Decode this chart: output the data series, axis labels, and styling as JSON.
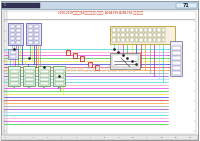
{
  "title": "2018-2019年雷克萨斯ES系列车型电路图-巡航控制  A25A-FXS A25B-FXS 混合动力系统",
  "bg_color": "#ffffff",
  "page_num": "71",
  "watermark": "www.AutoCD.net",
  "wire_cyan": "#00cccc",
  "wire_magenta": "#dd00dd",
  "wire_pink": "#ff88bb",
  "wire_green": "#00bb00",
  "wire_yellow": "#dddd00",
  "wire_blue": "#0000dd",
  "wire_red": "#dd0000",
  "wire_orange": "#ff8800",
  "wire_gray": "#888888",
  "wire_darkgray": "#555555",
  "wire_purple": "#8800bb",
  "wire_lightblue": "#88ccff",
  "comp_fill": "#e8e8f8",
  "comp_fill2": "#e8f8e8",
  "comp_fill3": "#f8f0e0",
  "comp_border": "#4444aa",
  "comp_border2": "#448844",
  "comp_border3": "#aa8800",
  "header_fill": "#c8e8f8",
  "header_border": "#4488aa"
}
